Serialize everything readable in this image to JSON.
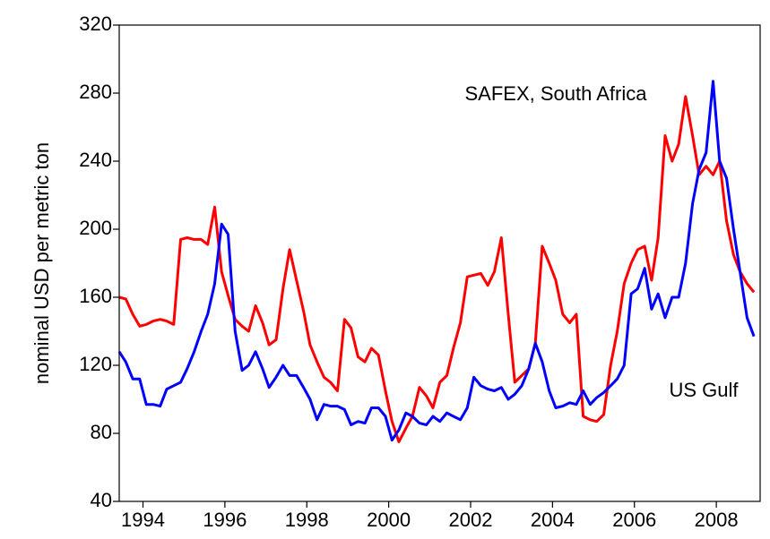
{
  "chart_data": {
    "type": "line",
    "y_label": "nominal USD per metric ton",
    "x": [
      1993.42,
      1993.58,
      1993.75,
      1993.92,
      1994.08,
      1994.25,
      1994.42,
      1994.58,
      1994.75,
      1994.92,
      1995.08,
      1995.25,
      1995.42,
      1995.58,
      1995.75,
      1995.92,
      1996.08,
      1996.25,
      1996.42,
      1996.58,
      1996.75,
      1996.92,
      1997.08,
      1997.25,
      1997.42,
      1997.58,
      1997.75,
      1997.92,
      1998.08,
      1998.25,
      1998.42,
      1998.58,
      1998.75,
      1998.92,
      1999.08,
      1999.25,
      1999.42,
      1999.58,
      1999.75,
      1999.92,
      2000.08,
      2000.25,
      2000.42,
      2000.58,
      2000.75,
      2000.92,
      2001.08,
      2001.25,
      2001.42,
      2001.58,
      2001.75,
      2001.92,
      2002.08,
      2002.25,
      2002.42,
      2002.58,
      2002.75,
      2002.92,
      2003.08,
      2003.25,
      2003.42,
      2003.58,
      2003.75,
      2003.92,
      2004.08,
      2004.25,
      2004.42,
      2004.58,
      2004.75,
      2004.92,
      2005.08,
      2005.25,
      2005.42,
      2005.58,
      2005.75,
      2005.92,
      2006.08,
      2006.25,
      2006.42,
      2006.58,
      2006.75,
      2006.92,
      2007.08,
      2007.25,
      2007.42,
      2007.58,
      2007.75,
      2007.92,
      2008.08,
      2008.25,
      2008.42,
      2008.58,
      2008.75,
      2008.92
    ],
    "series": [
      {
        "name": "SAFEX, South Africa",
        "color": "#ff0000",
        "values": [
          160,
          159,
          150,
          143,
          144,
          146,
          147,
          146,
          144,
          194,
          195,
          194,
          194,
          191,
          213,
          175,
          161,
          147,
          143,
          140,
          155,
          145,
          132,
          135,
          165,
          188,
          170,
          152,
          132,
          122,
          113,
          110,
          105,
          147,
          142,
          125,
          122,
          130,
          126,
          105,
          87,
          75,
          83,
          90,
          107,
          102,
          95,
          110,
          114,
          130,
          145,
          172,
          173,
          174,
          167,
          175,
          195,
          150,
          110,
          114,
          118,
          133,
          190,
          180,
          170,
          150,
          145,
          150,
          90,
          88,
          87,
          91,
          120,
          140,
          168,
          180,
          188,
          190,
          170,
          195,
          255,
          240,
          250,
          278,
          255,
          232,
          237,
          232,
          240,
          205,
          185,
          175,
          168,
          163
        ]
      },
      {
        "name": "US Gulf",
        "color": "#0000ff",
        "values": [
          128,
          122,
          112,
          112,
          97,
          97,
          96,
          106,
          108,
          110,
          118,
          128,
          140,
          150,
          168,
          203,
          197,
          140,
          117,
          120,
          128,
          118,
          107,
          113,
          120,
          114,
          114,
          107,
          100,
          88,
          97,
          96,
          96,
          94,
          85,
          87,
          86,
          95,
          95,
          90,
          76,
          82,
          92,
          90,
          86,
          85,
          90,
          87,
          92,
          90,
          88,
          95,
          113,
          108,
          106,
          105,
          107,
          100,
          103,
          108,
          118,
          133,
          122,
          105,
          95,
          96,
          98,
          97,
          105,
          97,
          101,
          104,
          108,
          112,
          120,
          162,
          165,
          177,
          153,
          162,
          148,
          160,
          160,
          180,
          215,
          235,
          245,
          287,
          240,
          230,
          200,
          175,
          148,
          137
        ]
      }
    ],
    "xlim": [
      1993.42,
      2009.07
    ],
    "xticks": [
      1994,
      1996,
      1998,
      2000,
      2002,
      2004,
      2006,
      2008
    ],
    "ylim": [
      40,
      320
    ],
    "yticks": [
      40,
      80,
      120,
      160,
      200,
      240,
      280,
      320
    ],
    "grid": false
  }
}
